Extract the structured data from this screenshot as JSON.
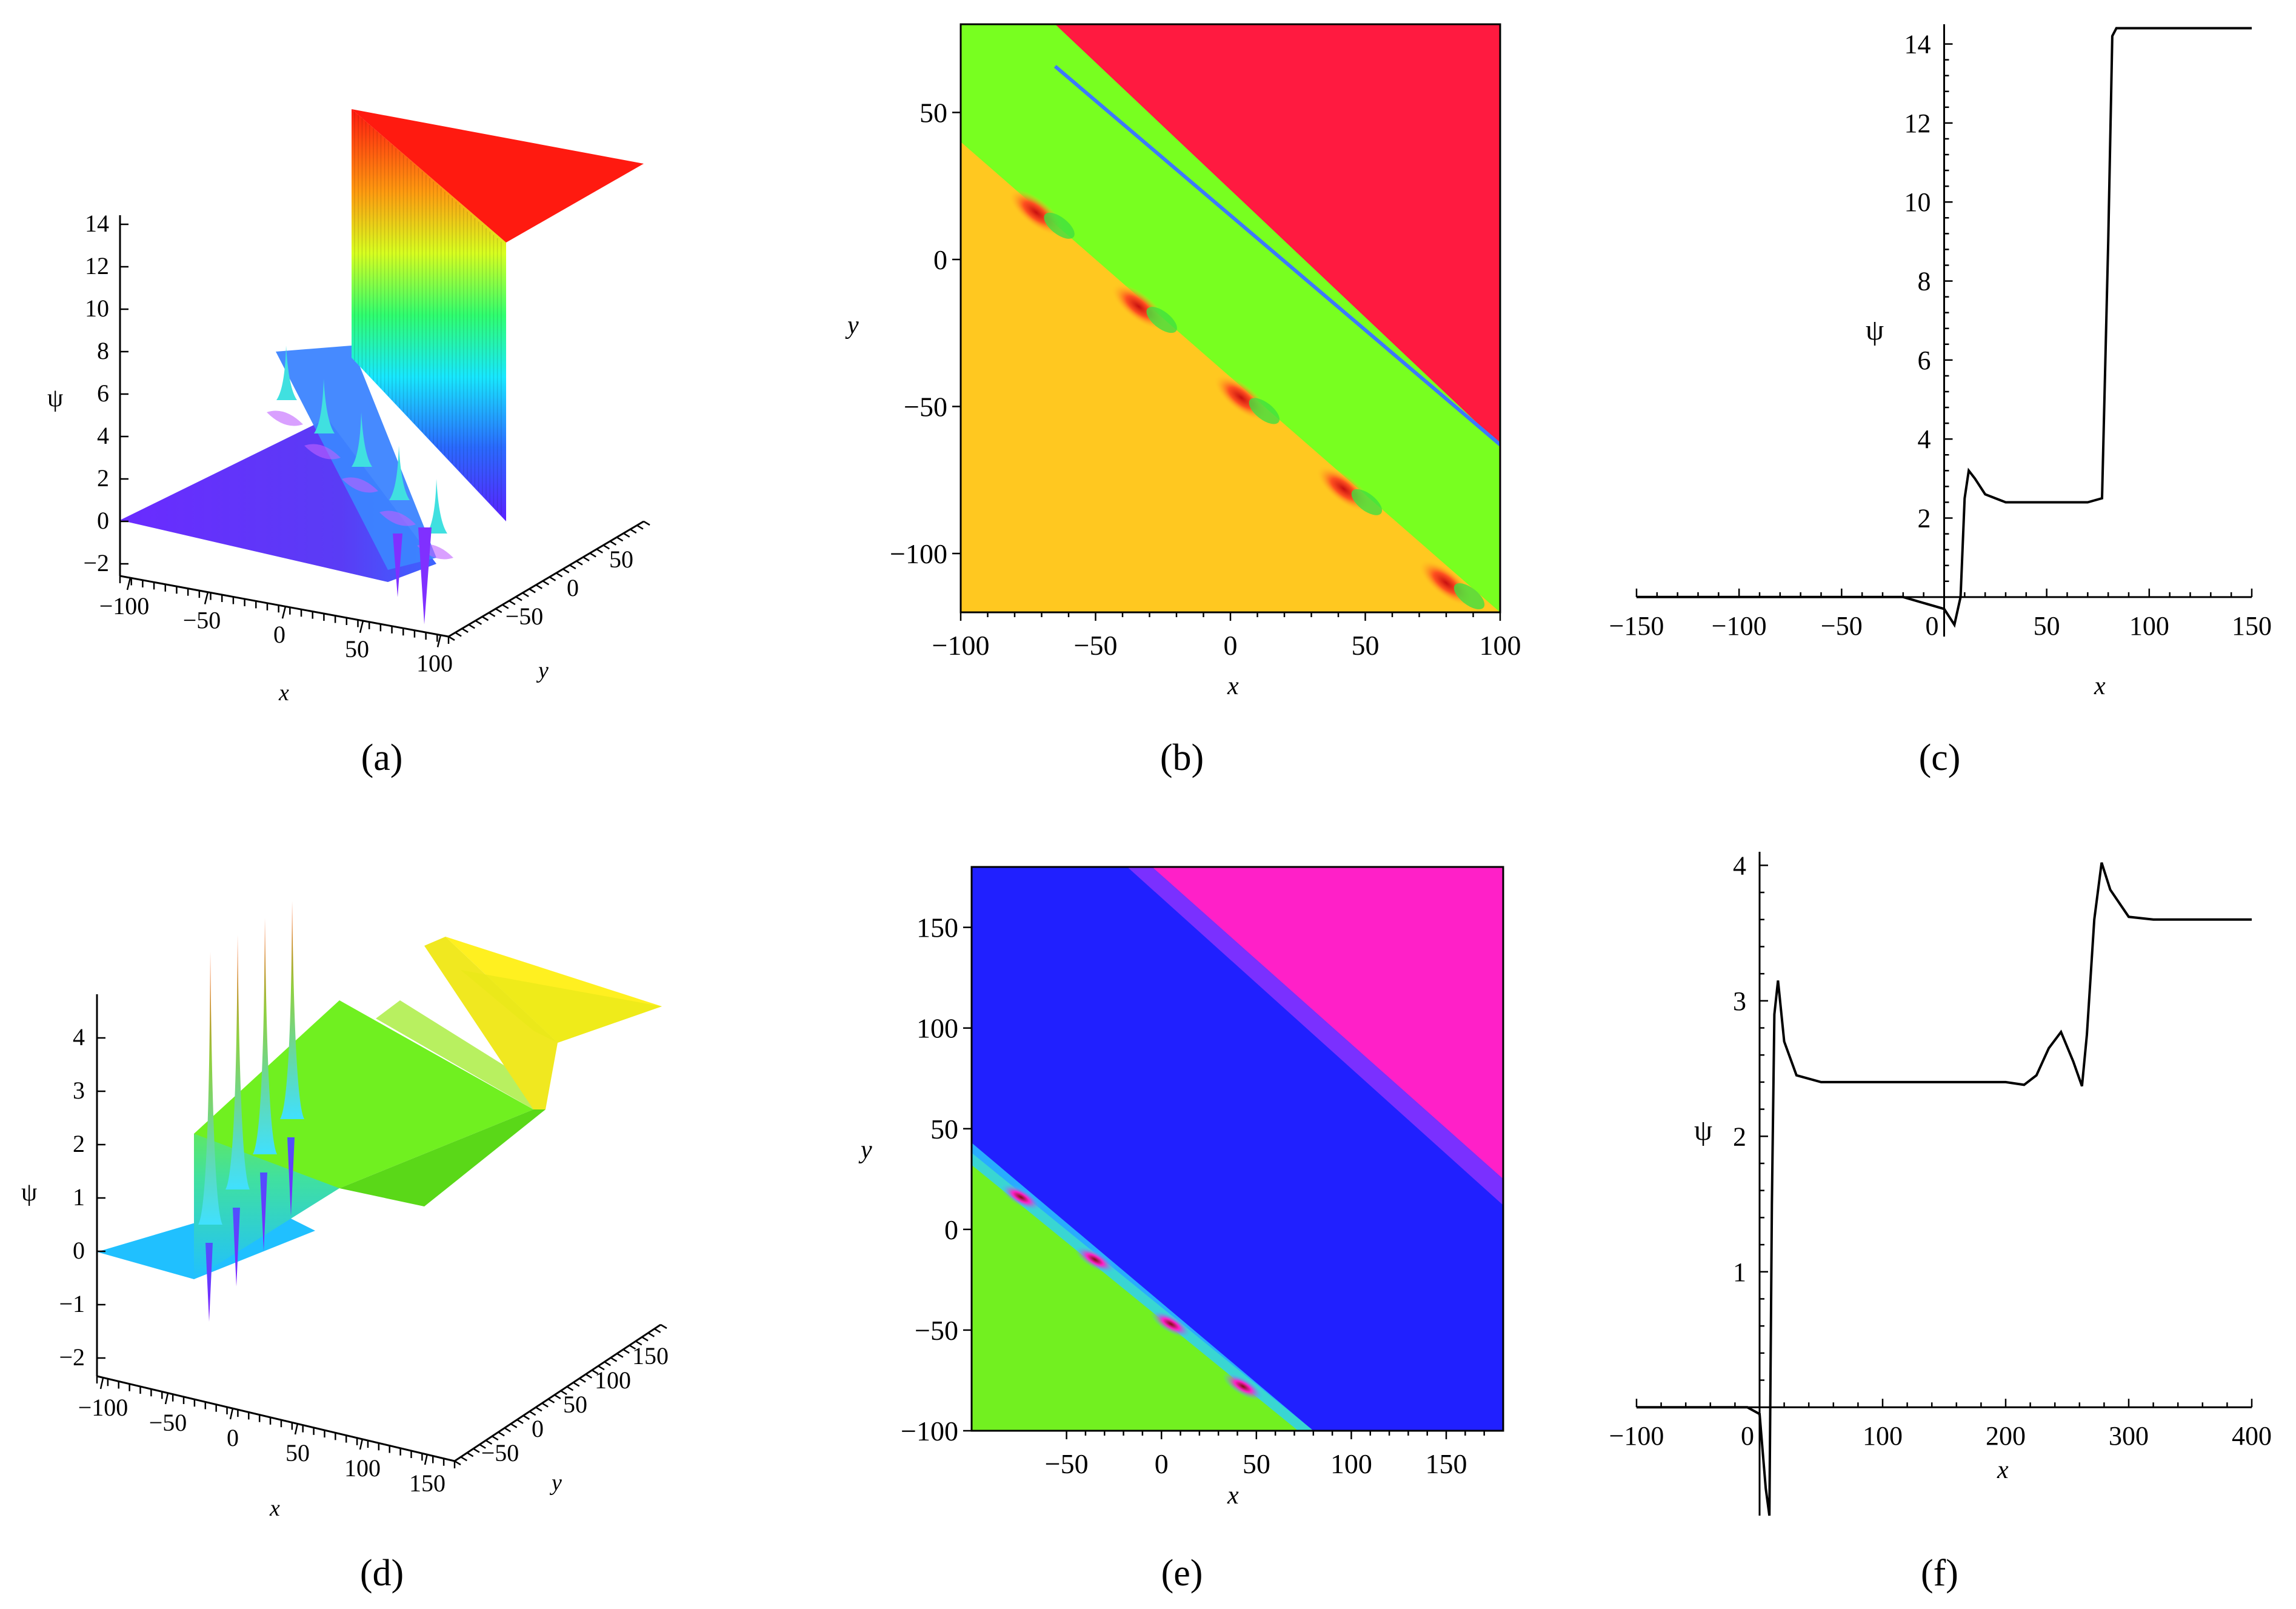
{
  "panel_labels": [
    "(a)",
    "(b)",
    "(c)",
    "(d)",
    "(e)",
    "(f)"
  ],
  "chart_data": [
    {
      "id": "a",
      "type": "surface",
      "xlabel": "x",
      "ylabel": "y",
      "zlabel": "ψ",
      "x_ticks": [
        "−100",
        "−50",
        "0",
        "50",
        "100"
      ],
      "y_ticks": [
        "−50",
        "0",
        "50"
      ],
      "z_ticks": [
        "−2",
        "0",
        "2",
        "4",
        "6",
        "8",
        "10",
        "12",
        "14"
      ],
      "xlim": [
        -100,
        100
      ],
      "ylim": [
        -60,
        80
      ],
      "zlim": [
        -2,
        14
      ],
      "levels": [
        0,
        2.4,
        14.4
      ],
      "spike_count": 5
    },
    {
      "id": "b",
      "type": "heatmap",
      "xlabel": "x",
      "ylabel": "y",
      "x_ticks": [
        "−100",
        "−50",
        "0",
        "50",
        "100"
      ],
      "y_ticks": [
        "50",
        "0",
        "−50",
        "−100"
      ],
      "xlim": [
        -100,
        100
      ],
      "ylim": [
        -120,
        80
      ],
      "colors": {
        "low": "#FFC820",
        "mid": "#78FF20",
        "high": "#FF1A40",
        "edge": "#3C78FF"
      },
      "defects": [
        [
          -72,
          16
        ],
        [
          -34,
          -16
        ],
        [
          4,
          -47
        ],
        [
          42,
          -78
        ],
        [
          80,
          -110
        ]
      ]
    },
    {
      "id": "c",
      "type": "line",
      "xlabel": "x",
      "ylabel": "ψ",
      "x_ticks": [
        "−150",
        "−100",
        "−50",
        "0",
        "50",
        "100",
        "150"
      ],
      "y_ticks": [
        "2",
        "4",
        "6",
        "8",
        "10",
        "12",
        "14"
      ],
      "xlim": [
        -150,
        150
      ],
      "ylim": [
        -1,
        14.5
      ],
      "x": [
        -150,
        -20,
        0,
        5,
        8,
        10,
        12,
        15,
        20,
        30,
        40,
        50,
        70,
        77,
        80,
        82,
        84,
        150
      ],
      "y": [
        0,
        0,
        -0.3,
        -0.7,
        0,
        2.5,
        3.2,
        3.0,
        2.6,
        2.4,
        2.4,
        2.4,
        2.4,
        2.5,
        9,
        14.2,
        14.4,
        14.4
      ]
    },
    {
      "id": "d",
      "type": "surface",
      "xlabel": "x",
      "ylabel": "y",
      "zlabel": "ψ",
      "x_ticks": [
        "−100",
        "−50",
        "0",
        "50",
        "100",
        "150"
      ],
      "y_ticks": [
        "−50",
        "0",
        "50",
        "100",
        "150"
      ],
      "z_ticks": [
        "−2",
        "−1",
        "0",
        "1",
        "2",
        "3",
        "4"
      ],
      "xlim": [
        -100,
        150
      ],
      "ylim": [
        -60,
        160
      ],
      "zlim": [
        -2.5,
        4.8
      ],
      "levels": [
        0,
        2.4,
        3.6
      ],
      "spike_count": 4
    },
    {
      "id": "e",
      "type": "heatmap",
      "xlabel": "x",
      "ylabel": "y",
      "x_ticks": [
        "−50",
        "0",
        "50",
        "100",
        "150"
      ],
      "y_ticks": [
        "150",
        "100",
        "50",
        "0",
        "−50",
        "−100"
      ],
      "xlim": [
        -100,
        180
      ],
      "ylim": [
        -100,
        180
      ],
      "colors": {
        "low": "#72F020",
        "mid": "#2020FF",
        "high": "#FF20C8",
        "band": "#7A30FF"
      },
      "defects": [
        [
          -74,
          16
        ],
        [
          -35,
          -15
        ],
        [
          5,
          -47
        ],
        [
          43,
          -78
        ]
      ]
    },
    {
      "id": "f",
      "type": "line",
      "xlabel": "x",
      "ylabel": "ψ",
      "x_ticks": [
        "−100",
        "0",
        "100",
        "200",
        "300",
        "400"
      ],
      "y_ticks": [
        "1",
        "2",
        "3",
        "4"
      ],
      "xlim": [
        -100,
        400
      ],
      "ylim": [
        -0.8,
        4.1
      ],
      "x": [
        -100,
        -10,
        0,
        5,
        8,
        10,
        12,
        15,
        20,
        30,
        50,
        100,
        200,
        215,
        225,
        235,
        245,
        255,
        262,
        266,
        272,
        278,
        285,
        300,
        320,
        400
      ],
      "y": [
        0,
        0,
        -0.05,
        -0.6,
        -0.8,
        1.5,
        2.9,
        3.15,
        2.7,
        2.45,
        2.4,
        2.4,
        2.4,
        2.38,
        2.45,
        2.65,
        2.77,
        2.55,
        2.37,
        2.75,
        3.6,
        4.02,
        3.82,
        3.62,
        3.6,
        3.6
      ]
    }
  ]
}
